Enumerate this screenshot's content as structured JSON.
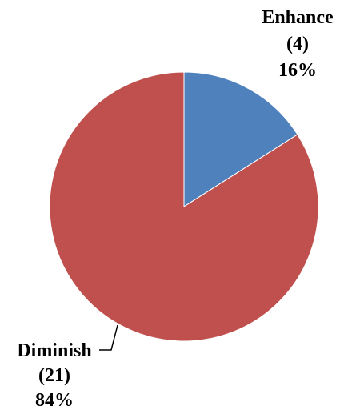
{
  "chart_data": {
    "type": "pie",
    "title": "",
    "legend": "none",
    "start_angle_deg": 0,
    "direction": "clockwise",
    "slices": [
      {
        "label": "Enhance",
        "count": "(4)",
        "percent": "16%",
        "value": 4,
        "color": "#4f81bd"
      },
      {
        "label": "Diminish",
        "count": "(21)",
        "percent": "84%",
        "value": 21,
        "color": "#c0504d"
      }
    ]
  }
}
